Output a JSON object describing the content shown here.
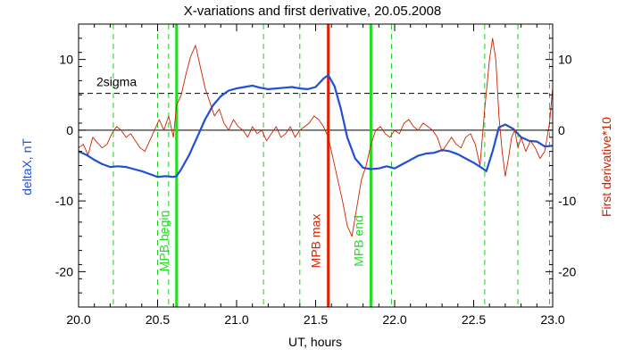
{
  "chart_data": {
    "type": "line",
    "title": "X-variations and first derivative, 20.05.2008",
    "xlabel": "UT, hours",
    "ylabel_left": "deltaX, nT",
    "ylabel_right": "First derivative*10",
    "xlim": [
      20.0,
      23.0
    ],
    "ylim": [
      -25,
      15
    ],
    "x_ticks": [
      20.0,
      20.5,
      21.0,
      21.5,
      22.0,
      22.5,
      23.0
    ],
    "x_tick_labels": [
      "20.0",
      "20.5",
      "21.0",
      "21.5",
      "22.0",
      "22.5",
      "23.0"
    ],
    "y_ticks": [
      -20,
      -10,
      0,
      10
    ],
    "y_tick_labels": [
      "-20",
      "-10",
      "0",
      "10"
    ],
    "colors": {
      "deltaX": "#1f4fd6",
      "derivative": "#cc2200",
      "mpb_max": "#e02000",
      "mpb_bounds": "#22dd22",
      "dashed_markers": "#22cc22",
      "axes": "#000000"
    },
    "reference_lines": [
      {
        "label": "2sigma",
        "y": 5.2,
        "style": "dashed"
      },
      {
        "label": "",
        "y": 0,
        "style": "solid"
      }
    ],
    "vertical_markers": [
      {
        "label": "MPB begin",
        "x": 20.62,
        "kind": "bound"
      },
      {
        "label": "MPB max",
        "x": 21.58,
        "kind": "max"
      },
      {
        "label": "MPB end",
        "x": 21.85,
        "kind": "bound"
      }
    ],
    "dashed_verticals": [
      20.22,
      20.5,
      20.57,
      21.17,
      21.4,
      21.98,
      22.57,
      22.78,
      22.98
    ],
    "series": [
      {
        "name": "deltaX, nT",
        "x": [
          20.0,
          20.05,
          20.1,
          20.15,
          20.2,
          20.25,
          20.3,
          20.35,
          20.4,
          20.45,
          20.5,
          20.55,
          20.6,
          20.62,
          20.65,
          20.7,
          20.75,
          20.8,
          20.85,
          20.9,
          20.95,
          21.0,
          21.05,
          21.1,
          21.15,
          21.2,
          21.25,
          21.3,
          21.35,
          21.4,
          21.45,
          21.5,
          21.55,
          21.58,
          21.62,
          21.66,
          21.7,
          21.75,
          21.8,
          21.85,
          21.9,
          21.95,
          22.0,
          22.05,
          22.1,
          22.15,
          22.2,
          22.25,
          22.3,
          22.35,
          22.4,
          22.45,
          22.5,
          22.55,
          22.58,
          22.62,
          22.66,
          22.7,
          22.75,
          22.8,
          22.85,
          22.9,
          22.95,
          23.0
        ],
        "values": [
          -3.0,
          -3.5,
          -4.2,
          -4.8,
          -5.2,
          -5.1,
          -5.2,
          -5.5,
          -5.8,
          -6.2,
          -6.6,
          -6.5,
          -6.6,
          -6.5,
          -5.5,
          -3.5,
          -1.0,
          1.5,
          3.5,
          4.8,
          5.6,
          5.9,
          6.1,
          6.3,
          6.0,
          5.8,
          5.9,
          6.0,
          6.1,
          5.9,
          5.8,
          6.1,
          7.3,
          7.8,
          6.2,
          3.0,
          -1.0,
          -4.0,
          -5.3,
          -5.5,
          -5.4,
          -5.1,
          -5.4,
          -4.8,
          -4.2,
          -3.6,
          -3.3,
          -3.2,
          -2.8,
          -3.0,
          -3.4,
          -4.0,
          -4.6,
          -5.3,
          -5.8,
          -3.0,
          0.4,
          0.8,
          0.2,
          -1.0,
          -1.5,
          -1.6,
          -2.3,
          -2.2
        ]
      },
      {
        "name": "First derivative*10",
        "x": [
          20.0,
          20.03,
          20.06,
          20.09,
          20.12,
          20.15,
          20.18,
          20.21,
          20.24,
          20.27,
          20.3,
          20.33,
          20.36,
          20.39,
          20.42,
          20.45,
          20.48,
          20.51,
          20.54,
          20.57,
          20.6,
          20.62,
          20.65,
          20.68,
          20.71,
          20.74,
          20.77,
          20.8,
          20.83,
          20.86,
          20.89,
          20.92,
          20.95,
          20.98,
          21.01,
          21.04,
          21.07,
          21.1,
          21.13,
          21.16,
          21.19,
          21.22,
          21.25,
          21.28,
          21.31,
          21.34,
          21.37,
          21.4,
          21.43,
          21.46,
          21.49,
          21.52,
          21.55,
          21.58,
          21.61,
          21.64,
          21.67,
          21.7,
          21.73,
          21.76,
          21.79,
          21.82,
          21.85,
          21.88,
          21.91,
          21.94,
          21.97,
          22.0,
          22.03,
          22.06,
          22.09,
          22.12,
          22.15,
          22.18,
          22.21,
          22.24,
          22.27,
          22.3,
          22.33,
          22.36,
          22.39,
          22.42,
          22.45,
          22.48,
          22.51,
          22.54,
          22.57,
          22.6,
          22.62,
          22.64,
          22.66,
          22.68,
          22.7,
          22.72,
          22.74,
          22.76,
          22.78,
          22.8,
          22.83,
          22.86,
          22.89,
          22.92,
          22.95,
          22.98,
          23.0
        ],
        "values": [
          -2.5,
          -2.0,
          -3.5,
          -1.0,
          -1.8,
          -2.5,
          -2.0,
          -0.5,
          0.5,
          0.0,
          -1.0,
          -0.5,
          -1.5,
          -2.5,
          -3.0,
          -1.5,
          0.0,
          1.5,
          0.0,
          2.0,
          -1.0,
          3.5,
          5.0,
          8.0,
          10.5,
          12.0,
          9.0,
          6.0,
          4.0,
          2.0,
          3.0,
          1.0,
          0.0,
          1.5,
          0.5,
          0.0,
          -1.0,
          0.5,
          -0.5,
          0.0,
          -1.5,
          -0.5,
          0.5,
          -1.0,
          -0.5,
          0.5,
          -1.0,
          0.0,
          0.5,
          1.0,
          2.0,
          1.5,
          0.5,
          -1.0,
          -4.0,
          -7.0,
          -10.0,
          -13.5,
          -15.0,
          -11.0,
          -7.0,
          -5.0,
          -2.0,
          0.0,
          0.5,
          -0.5,
          -1.0,
          0.0,
          -0.5,
          1.0,
          1.5,
          0.5,
          0.0,
          1.0,
          0.5,
          0.0,
          -1.0,
          -3.0,
          -2.0,
          -1.0,
          -2.0,
          -2.5,
          -1.0,
          -0.5,
          -2.0,
          -5.0,
          3.0,
          10.0,
          13.0,
          10.0,
          2.0,
          -3.0,
          -6.5,
          -4.0,
          -1.0,
          0.0,
          -2.5,
          -1.0,
          -3.0,
          -1.5,
          -2.5,
          -4.0,
          -3.0,
          1.0,
          6.0
        ]
      }
    ]
  }
}
